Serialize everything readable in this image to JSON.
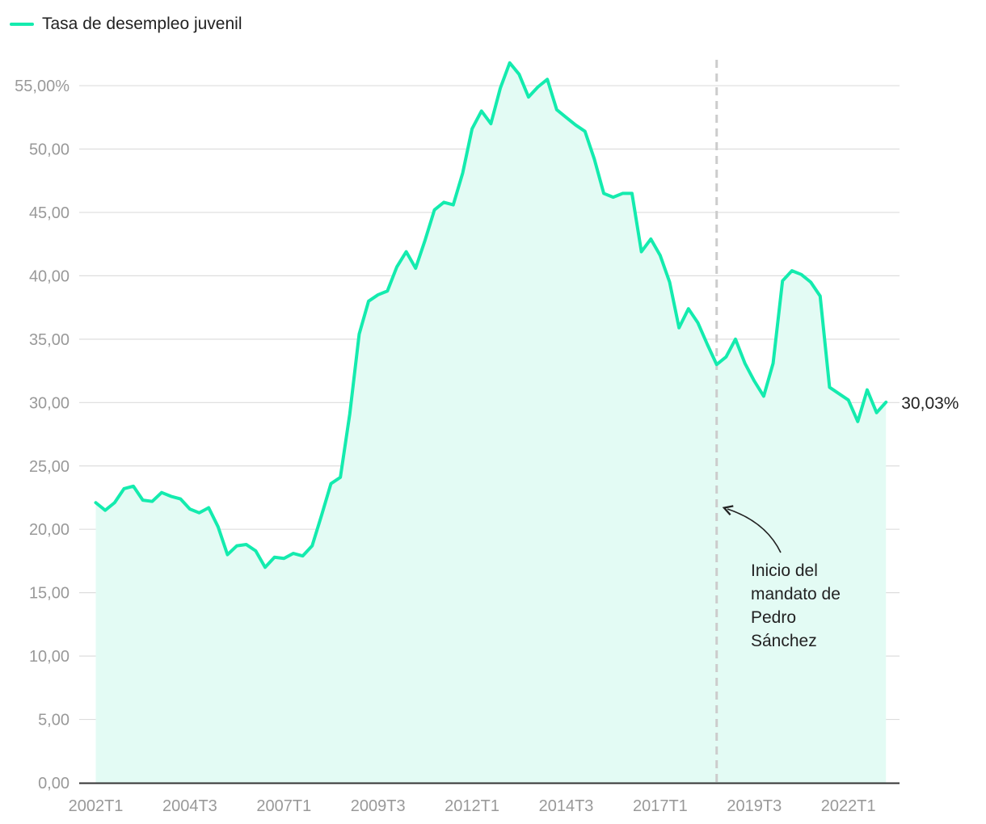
{
  "legend": {
    "label": "Tasa de desempleo juvenil"
  },
  "colors": {
    "series": "#14EBAE",
    "area": "#E3FBF4",
    "grid": "#DDDDDD",
    "axis": "#333333",
    "tick": "#999999",
    "marker": "#CCCCCC"
  },
  "chart_data": {
    "type": "area",
    "title": "",
    "xlabel": "",
    "ylabel": "",
    "ylim": [
      0,
      55
    ],
    "y_ticks": [
      "0,00",
      "5,00",
      "10,00",
      "15,00",
      "20,00",
      "25,00",
      "30,00",
      "35,00",
      "40,00",
      "45,00",
      "50,00",
      "55,00%"
    ],
    "x_tick_labels": [
      "2002T1",
      "2004T3",
      "2007T1",
      "2009T3",
      "2012T1",
      "2014T3",
      "2017T1",
      "2019T3",
      "2022T1"
    ],
    "grid": true,
    "legend_position": "top-left",
    "series": [
      {
        "name": "Tasa de desempleo juvenil",
        "x": [
          "2002T1",
          "2002T2",
          "2002T3",
          "2002T4",
          "2003T1",
          "2003T2",
          "2003T3",
          "2003T4",
          "2004T1",
          "2004T2",
          "2004T3",
          "2004T4",
          "2005T1",
          "2005T2",
          "2005T3",
          "2005T4",
          "2006T1",
          "2006T2",
          "2006T3",
          "2006T4",
          "2007T1",
          "2007T2",
          "2007T3",
          "2007T4",
          "2008T1",
          "2008T2",
          "2008T3",
          "2008T4",
          "2009T1",
          "2009T2",
          "2009T3",
          "2009T4",
          "2010T1",
          "2010T2",
          "2010T3",
          "2010T4",
          "2011T1",
          "2011T2",
          "2011T3",
          "2011T4",
          "2012T1",
          "2012T2",
          "2012T3",
          "2012T4",
          "2013T1",
          "2013T2",
          "2013T3",
          "2013T4",
          "2014T1",
          "2014T2",
          "2014T3",
          "2014T4",
          "2015T1",
          "2015T2",
          "2015T3",
          "2015T4",
          "2016T1",
          "2016T2",
          "2016T3",
          "2016T4",
          "2017T1",
          "2017T2",
          "2017T3",
          "2017T4",
          "2018T1",
          "2018T2",
          "2018T3",
          "2018T4",
          "2019T1",
          "2019T2",
          "2019T3",
          "2019T4",
          "2020T1",
          "2020T2",
          "2020T3",
          "2020T4",
          "2021T1",
          "2021T2",
          "2021T3",
          "2021T4",
          "2022T1",
          "2022T2",
          "2022T3",
          "2022T4",
          "2023T1"
        ],
        "values": [
          22.1,
          21.5,
          22.1,
          23.2,
          23.4,
          22.3,
          22.2,
          22.9,
          22.6,
          22.4,
          21.6,
          21.3,
          21.7,
          20.2,
          18.0,
          18.7,
          18.8,
          18.3,
          17.0,
          17.8,
          17.7,
          18.1,
          17.9,
          18.7,
          21.1,
          23.6,
          24.1,
          29.1,
          35.4,
          38.0,
          38.5,
          38.8,
          40.7,
          41.9,
          40.6,
          42.8,
          45.2,
          45.8,
          45.6,
          48.1,
          51.6,
          53.0,
          52.0,
          54.8,
          56.8,
          55.9,
          54.1,
          54.9,
          55.5,
          53.1,
          52.5,
          51.9,
          51.4,
          49.2,
          46.5,
          46.2,
          46.5,
          46.5,
          41.9,
          42.9,
          41.6,
          39.5,
          35.9,
          37.4,
          36.3,
          34.6,
          33.0,
          33.6,
          35.0,
          33.1,
          31.7,
          30.5,
          33.1,
          39.6,
          40.4,
          40.1,
          39.5,
          38.4,
          31.2,
          30.7,
          30.2,
          28.5,
          31.0,
          29.2,
          30.03
        ]
      }
    ],
    "end_label": "30,03%",
    "marker": {
      "x": "2018T3",
      "annotation": [
        "Inicio del",
        "mandato de",
        "Pedro",
        "Sánchez"
      ]
    }
  }
}
